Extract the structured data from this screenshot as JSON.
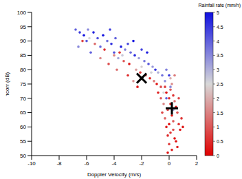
{
  "chart_data": {
    "type": "scatter",
    "xlabel": "Doppler Velocity (m/s)",
    "ylabel": "τcorr (dB)",
    "xlim": [
      -10,
      2
    ],
    "xticks": [
      -10,
      -8,
      -6,
      -4,
      -2,
      0,
      2
    ],
    "ylim": [
      50,
      100
    ],
    "yticks": [
      50,
      55,
      60,
      65,
      70,
      75,
      80,
      85,
      90,
      95,
      100
    ],
    "series": [
      {
        "x": [
          -6.5,
          -6.8,
          -6.2,
          -5.9,
          -5.5,
          -5.2,
          -4.8,
          -4.5,
          -4.2,
          -3.9,
          -3.5,
          -3.2,
          -3.0,
          -2.8,
          -2.5,
          -2.2,
          -2.0,
          -1.8,
          -1.5,
          -1.2,
          -1.0,
          -0.8,
          -0.5,
          -0.3,
          -6.0,
          -5.0,
          -4.0,
          -6.6,
          -5.7,
          -3.7,
          -0.2,
          -1.6,
          -2.6,
          -4.3,
          -6.3,
          -5.4,
          -4.7,
          -4.0,
          -3.6,
          -3.3,
          -2.9,
          -2.4,
          -2.1,
          -1.7,
          -1.4,
          -1.1,
          -0.9,
          -0.6,
          -5.0,
          -4.4,
          -3.8,
          -3.0,
          -2.6,
          -2.3,
          -5.8,
          -3.4,
          -2.0,
          -1.3,
          -0.4,
          0,
          0.1,
          -0.1,
          0.2,
          0.3,
          -0.2,
          0.1,
          0.4,
          0,
          0.2,
          -0.3,
          0.5,
          0.6,
          -0.4,
          0.3,
          0.1,
          -0.2,
          0.7,
          0.8,
          -0.5,
          0.4,
          0,
          -0.1,
          0.5,
          0.9,
          -0.6,
          0.2,
          -0.8,
          0.3,
          0.6,
          -0.1,
          0.1,
          0.4,
          -0.3,
          1.0,
          0.7,
          0.1,
          -0.2,
          0.3,
          0
        ],
        "values": [
          93,
          94,
          92,
          94,
          93,
          91,
          92,
          90,
          89,
          91,
          88,
          87,
          89,
          86,
          85,
          84,
          87,
          83,
          82,
          81,
          80,
          79,
          78,
          76,
          90,
          88,
          86,
          88,
          86,
          84,
          80,
          86,
          90,
          94,
          90,
          89,
          87,
          85,
          86,
          83,
          82,
          80,
          79,
          78,
          77,
          76,
          75,
          74,
          84,
          82,
          80,
          78,
          76,
          74,
          91,
          85,
          81,
          79,
          72,
          70,
          68,
          66,
          64,
          62,
          60,
          58,
          56,
          54,
          52,
          63,
          67,
          65,
          68,
          71,
          73,
          72,
          61,
          59,
          65,
          69,
          61,
          57,
          55,
          63,
          70,
          75,
          72,
          59,
          53,
          51,
          77,
          78,
          74,
          60,
          70,
          74,
          70,
          66,
          78
        ],
        "rain": [
          4.5,
          4,
          5,
          3.5,
          4.8,
          4.2,
          5,
          3.8,
          4.6,
          4,
          4.9,
          3.6,
          4.3,
          3.9,
          4.7,
          3.2,
          4.4,
          3.7,
          4.1,
          3.3,
          4.5,
          3.0,
          3.8,
          3.4,
          4.1,
          3.9,
          4.2,
          3.5,
          4.0,
          3.1,
          3.6,
          4.8,
          4.9,
          4.4,
          0.8,
          1.2,
          0.5,
          1.5,
          0.6,
          1.0,
          0.3,
          1.8,
          0.7,
          1.1,
          0.4,
          1.4,
          0.2,
          0.9,
          1.6,
          0.9,
          1.3,
          0.5,
          1.7,
          0.3,
          2.5,
          2.7,
          2.4,
          2.6,
          2.5,
          0.5,
          0.3,
          0.8,
          0.2,
          1.0,
          0.4,
          0.6,
          0.1,
          0.7,
          0.3,
          1.2,
          0.4,
          0.9,
          1.5,
          0.6,
          1.1,
          0.2,
          0.5,
          0.3,
          0.8,
          1.3,
          0.1,
          0.5,
          0.2,
          0.6,
          1.0,
          1.6,
          0.4,
          0.9,
          0.4,
          0.2,
          2.0,
          1.4,
          0.7,
          0.3,
          0.8,
          3.5,
          4.0,
          3.2,
          4.5
        ]
      },
      {
        "x": [
          -2,
          0.2
        ],
        "values": [
          77,
          66.5
        ],
        "marker": [
          "x",
          "plus"
        ],
        "color": "#000000"
      }
    ],
    "colorbar": {
      "label": "Rainfall rate (mm/h)",
      "range": [
        0,
        5
      ],
      "ticks": [
        0,
        0.5,
        1,
        1.5,
        2,
        2.5,
        3,
        3.5,
        4,
        4.5,
        5
      ],
      "colors": [
        "#e00000",
        "#d8d8d8",
        "#1010e0"
      ]
    }
  }
}
